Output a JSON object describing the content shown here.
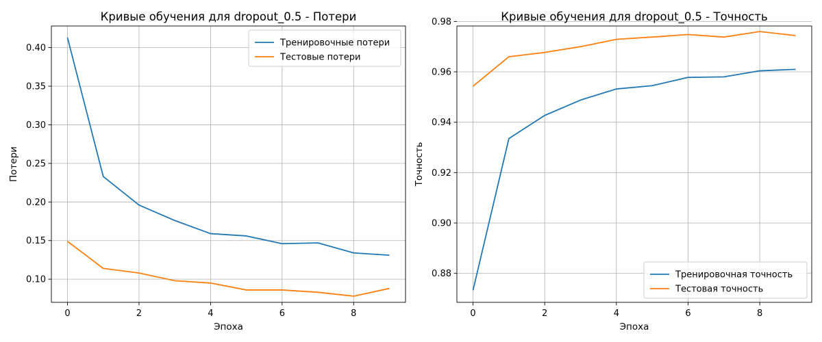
{
  "chart_data": [
    {
      "type": "line",
      "title": "Кривые обучения для dropout_0.5 - Потери",
      "xlabel": "Эпоха",
      "ylabel": "Потери",
      "xlim": [
        -0.45,
        9.45
      ],
      "ylim": [
        0.07,
        0.428
      ],
      "xticks": [
        0,
        2,
        4,
        6,
        8
      ],
      "xtick_labels": [
        "0",
        "2",
        "4",
        "6",
        "8"
      ],
      "yticks": [
        0.1,
        0.15,
        0.2,
        0.25,
        0.3,
        0.35,
        0.4
      ],
      "ytick_labels": [
        "0.10",
        "0.15",
        "0.20",
        "0.25",
        "0.30",
        "0.35",
        "0.40"
      ],
      "grid": true,
      "legend_position": "top-right",
      "x": [
        0,
        1,
        2,
        3,
        4,
        5,
        6,
        7,
        8,
        9
      ],
      "series": [
        {
          "name": "Тренировочные потери",
          "color": "#1f77b4",
          "values": [
            0.413,
            0.233,
            0.196,
            0.176,
            0.159,
            0.156,
            0.146,
            0.147,
            0.134,
            0.131
          ]
        },
        {
          "name": "Тестовые потери",
          "color": "#ff7f0e",
          "values": [
            0.149,
            0.114,
            0.108,
            0.098,
            0.095,
            0.086,
            0.086,
            0.083,
            0.078,
            0.088
          ]
        }
      ]
    },
    {
      "type": "line",
      "title": "Кривые обучения для dropout_0.5 - Точность",
      "xlabel": "Эпоха",
      "ylabel": "Точность",
      "xlim": [
        -0.45,
        9.45
      ],
      "ylim": [
        0.8685,
        0.9782
      ],
      "xticks": [
        0,
        2,
        4,
        6,
        8
      ],
      "xtick_labels": [
        "0",
        "2",
        "4",
        "6",
        "8"
      ],
      "yticks": [
        0.88,
        0.9,
        0.92,
        0.94,
        0.96,
        0.98
      ],
      "ytick_labels": [
        "0.88",
        "0.90",
        "0.92",
        "0.94",
        "0.96",
        "0.98"
      ],
      "grid": true,
      "legend_position": "bottom-right",
      "x": [
        0,
        1,
        2,
        3,
        4,
        5,
        6,
        7,
        8,
        9
      ],
      "series": [
        {
          "name": "Тренировочная точность",
          "color": "#1f77b4",
          "values": [
            0.8733,
            0.9335,
            0.9427,
            0.9488,
            0.9532,
            0.9545,
            0.9578,
            0.958,
            0.9604,
            0.961
          ]
        },
        {
          "name": "Тестовая точность",
          "color": "#ff7f0e",
          "values": [
            0.9543,
            0.966,
            0.9677,
            0.97,
            0.9729,
            0.9738,
            0.9748,
            0.9738,
            0.976,
            0.9744
          ]
        }
      ]
    }
  ]
}
